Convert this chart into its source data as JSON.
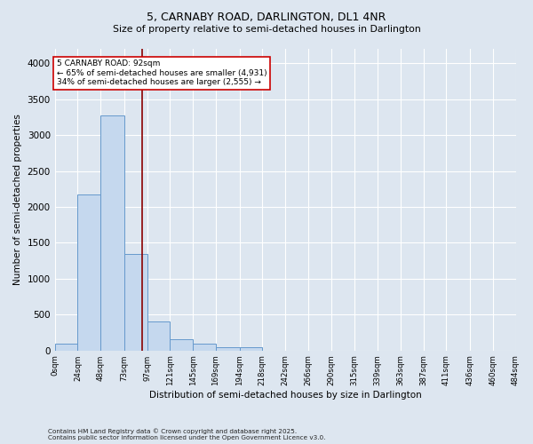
{
  "title_line1": "5, CARNABY ROAD, DARLINGTON, DL1 4NR",
  "title_line2": "Size of property relative to semi-detached houses in Darlington",
  "xlabel": "Distribution of semi-detached houses by size in Darlington",
  "ylabel": "Number of semi-detached properties",
  "footnote1": "Contains HM Land Registry data © Crown copyright and database right 2025.",
  "footnote2": "Contains public sector information licensed under the Open Government Licence v3.0.",
  "property_label": "5 CARNABY ROAD: 92sqm",
  "pct_smaller": 65,
  "pct_larger": 34,
  "count_smaller": 4931,
  "count_larger": 2555,
  "bin_edges": [
    0,
    24,
    48,
    73,
    97,
    121,
    145,
    169,
    194,
    218,
    242,
    266,
    290,
    315,
    339,
    363,
    387,
    411,
    436,
    460,
    484
  ],
  "bar_heights": [
    100,
    2170,
    3270,
    1340,
    400,
    155,
    90,
    45,
    45,
    0,
    0,
    0,
    0,
    0,
    0,
    0,
    0,
    0,
    0,
    0
  ],
  "bar_color": "#c5d8ee",
  "bar_edge_color": "#6699cc",
  "red_line_x": 92,
  "ylim": [
    0,
    4200
  ],
  "yticks": [
    0,
    500,
    1000,
    1500,
    2000,
    2500,
    3000,
    3500,
    4000
  ],
  "background_color": "#dde6f0",
  "axes_background": "#dde6f0",
  "grid_color": "#ffffff",
  "annotation_box_color": "#ffffff",
  "annotation_border_color": "#cc0000",
  "tick_labels": [
    "0sqm",
    "24sqm",
    "48sqm",
    "73sqm",
    "97sqm",
    "121sqm",
    "145sqm",
    "169sqm",
    "194sqm",
    "218sqm",
    "242sqm",
    "266sqm",
    "290sqm",
    "315sqm",
    "339sqm",
    "363sqm",
    "387sqm",
    "411sqm",
    "436sqm",
    "460sqm",
    "484sqm"
  ]
}
